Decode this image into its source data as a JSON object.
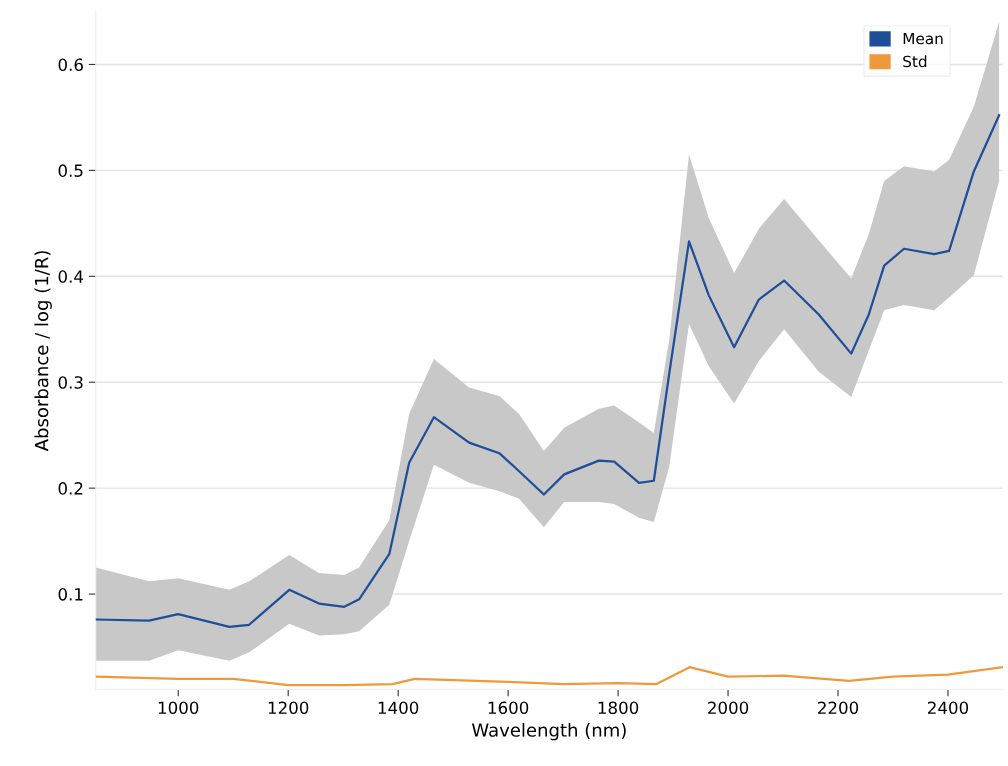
{
  "chart_data": {
    "type": "line",
    "xlabel": "Wavelength (nm)",
    "ylabel": "Absorbance / log (1/R)",
    "xlim": [
      850,
      2500
    ],
    "xticks": [
      1000,
      1200,
      1400,
      1600,
      1800,
      2000,
      2200,
      2400
    ],
    "ylim": [
      0.01,
      0.65
    ],
    "yticks": [
      0.1,
      0.2,
      0.3,
      0.4,
      0.5,
      0.6
    ],
    "grid": "y",
    "legend": "top right",
    "series": [
      {
        "name": "Mean",
        "color": "#1f4e99",
        "x": [
          850,
          947,
          1000,
          1093,
          1129,
          1202,
          1256,
          1302,
          1329,
          1384,
          1420,
          1465,
          1529,
          1584,
          1620,
          1665,
          1702,
          1765,
          1793,
          1838,
          1865,
          1893,
          1929,
          1965,
          2011,
          2056,
          2102,
          2165,
          2224,
          2256,
          2284,
          2320,
          2375,
          2402,
          2447,
          2493
        ],
        "values": [
          0.076,
          0.075,
          0.081,
          0.069,
          0.071,
          0.104,
          0.091,
          0.088,
          0.095,
          0.138,
          0.224,
          0.267,
          0.243,
          0.233,
          0.216,
          0.194,
          0.213,
          0.226,
          0.225,
          0.205,
          0.207,
          0.308,
          0.433,
          0.382,
          0.333,
          0.378,
          0.396,
          0.364,
          0.327,
          0.364,
          0.41,
          0.426,
          0.421,
          0.424,
          0.499,
          0.552
        ],
        "upper": [
          0.125,
          0.112,
          0.115,
          0.104,
          0.112,
          0.137,
          0.12,
          0.118,
          0.125,
          0.17,
          0.27,
          0.322,
          0.295,
          0.287,
          0.27,
          0.235,
          0.257,
          0.275,
          0.278,
          0.262,
          0.252,
          0.34,
          0.515,
          0.455,
          0.403,
          0.445,
          0.473,
          0.434,
          0.398,
          0.44,
          0.49,
          0.504,
          0.499,
          0.51,
          0.56,
          0.64
        ],
        "lower": [
          0.037,
          0.037,
          0.047,
          0.037,
          0.045,
          0.072,
          0.061,
          0.062,
          0.065,
          0.09,
          0.15,
          0.222,
          0.205,
          0.197,
          0.19,
          0.163,
          0.187,
          0.187,
          0.185,
          0.172,
          0.168,
          0.22,
          0.355,
          0.315,
          0.28,
          0.32,
          0.35,
          0.31,
          0.286,
          0.33,
          0.368,
          0.373,
          0.368,
          0.38,
          0.401,
          0.49
        ]
      },
      {
        "name": "Std",
        "color": "#ee9a3c",
        "x": [
          850,
          1000,
          1100,
          1200,
          1300,
          1390,
          1430,
          1600,
          1700,
          1800,
          1870,
          1930,
          2000,
          2100,
          2220,
          2300,
          2400,
          2500
        ],
        "values": [
          0.022,
          0.02,
          0.02,
          0.014,
          0.014,
          0.015,
          0.02,
          0.017,
          0.015,
          0.016,
          0.015,
          0.031,
          0.022,
          0.023,
          0.018,
          0.022,
          0.024,
          0.031
        ]
      }
    ]
  }
}
